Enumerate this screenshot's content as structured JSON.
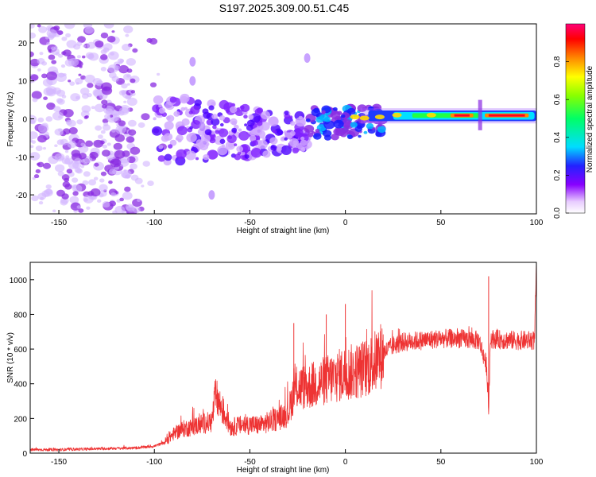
{
  "title": "S197.2025.309.00.51.C45",
  "chart_data": [
    {
      "type": "heatmap",
      "title": "S197.2025.309.00.51.C45",
      "xlabel": "Height of straight line (km)",
      "ylabel": "Frequency (Hz)",
      "xlim": [
        -165,
        100
      ],
      "ylim": [
        -25,
        25
      ],
      "xticks": [
        "-150",
        "-100",
        "-50",
        "0",
        "50",
        "100"
      ],
      "yticks": [
        "20",
        "10",
        "0",
        "-10",
        "-20"
      ],
      "colorbar": {
        "label": "Normalized spectral amplitude",
        "range": [
          0,
          1
        ],
        "ticks": [
          "0.0",
          "0.2",
          "0.4",
          "0.6",
          "0.8"
        ]
      },
      "bands": [
        {
          "x": [
            -165,
            -110
          ],
          "y": [
            -25,
            25
          ],
          "level": 0.15,
          "description": "scattered noise"
        },
        {
          "x": [
            -100,
            -20
          ],
          "y": [
            -20,
            10
          ],
          "level": 0.25
        },
        {
          "x": [
            -20,
            20
          ],
          "y": [
            -6,
            6
          ],
          "level": 0.35
        },
        {
          "x": [
            20,
            100
          ],
          "y": [
            0,
            2
          ],
          "level": 0.85
        }
      ]
    },
    {
      "type": "line",
      "title": "",
      "xlabel": "Height of straight line (km)",
      "ylabel": "SNR (10 * v/v)",
      "xlim": [
        -165,
        100
      ],
      "ylim": [
        0,
        1100
      ],
      "xticks": [
        "-150",
        "-100",
        "-50",
        "0",
        "50",
        "100"
      ],
      "yticks": [
        "0",
        "200",
        "400",
        "600",
        "800",
        "1000"
      ],
      "color": "#ee3333",
      "series": [
        {
          "name": "SNR",
          "x": [
            -165,
            -150,
            -130,
            -110,
            -100,
            -95,
            -90,
            -85,
            -80,
            -75,
            -70,
            -68,
            -60,
            -55,
            -50,
            -45,
            -40,
            -35,
            -30,
            -27,
            -25,
            -20,
            -15,
            -10,
            -5,
            0,
            5,
            10,
            15,
            20,
            25,
            30,
            40,
            50,
            60,
            70,
            74,
            75,
            76,
            80,
            90,
            99,
            100
          ],
          "y": [
            20,
            20,
            25,
            30,
            40,
            60,
            110,
            140,
            150,
            170,
            180,
            330,
            150,
            160,
            165,
            160,
            180,
            200,
            230,
            350,
            380,
            380,
            400,
            420,
            440,
            460,
            470,
            490,
            520,
            580,
            620,
            640,
            650,
            660,
            660,
            650,
            500,
            260,
            660,
            655,
            650,
            650,
            1080
          ]
        }
      ],
      "spikes": [
        {
          "x": -68,
          "y": 350
        },
        {
          "x": -27,
          "y": 750
        },
        {
          "x": -10,
          "y": 800
        },
        {
          "x": 0,
          "y": 860
        },
        {
          "x": 75,
          "y": 1020
        },
        {
          "x": 75,
          "y": 260
        },
        {
          "x": 100,
          "y": 1080
        }
      ]
    }
  ]
}
